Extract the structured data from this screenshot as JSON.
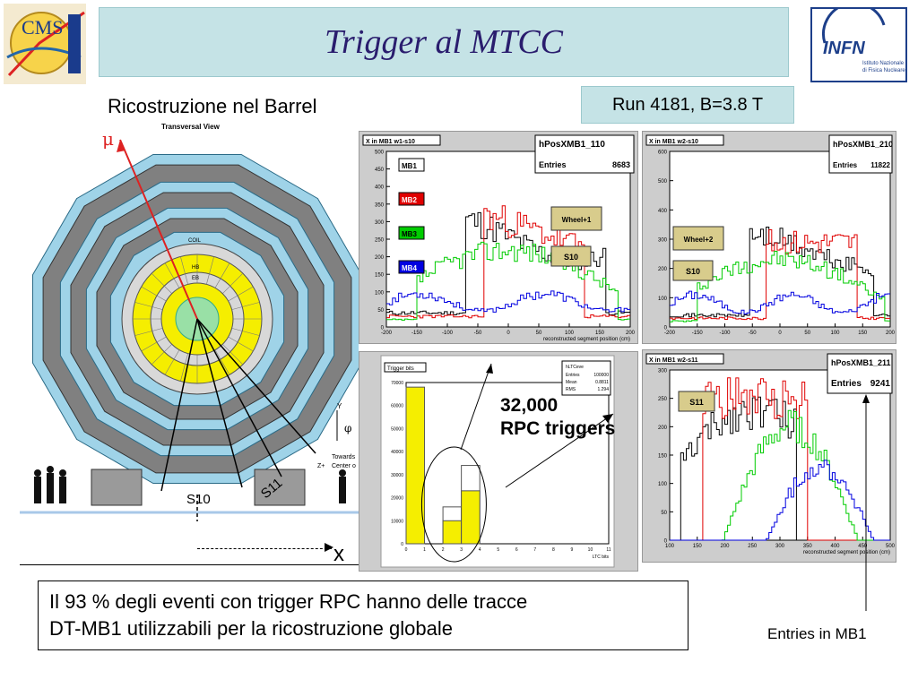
{
  "slide": {
    "title": "Trigger al MTCC",
    "subtitle": "Ricostruzione nel Barrel",
    "run_info": "Run 4181, B=3.8 T",
    "summary_line1": "Il 93 % degli eventi con trigger RPC hanno delle tracce",
    "summary_line2": "DT-MB1 utilizzabili per la ricostruzione globale",
    "entries_label": "Entries in MB1",
    "trigger_count": "32,000",
    "trigger_text": "RPC triggers"
  },
  "logos": {
    "cms_text": "CMS",
    "infn_text": "INFN",
    "infn_sub1": "Istituto Nazionale",
    "infn_sub2": "di Fisica Nucleare"
  },
  "detector": {
    "view_title": "Transversal View",
    "mu_label": "μ",
    "s10_label": "S10",
    "s11_label": "S11",
    "x_axis_label": "x",
    "y_label": "Y",
    "phi_label": "φ",
    "z_label": "Z+",
    "towards_label": "Towards",
    "center_label": "Center o",
    "coil_label": "COIL",
    "hb_label": "HB",
    "eb_label": "EB"
  },
  "hist1": {
    "frame_title": "X in MB1 w1-s10",
    "stat_name": "hPosXMB1_110",
    "entries_label": "Entries",
    "entries_value": "8683",
    "wheel": "Wheel+1",
    "sector": "S10",
    "legend": [
      "MB1",
      "MB2",
      "MB3",
      "MB4"
    ],
    "y_ticks": [
      "500",
      "450",
      "400",
      "350",
      "300",
      "250",
      "200",
      "150",
      "100",
      "50",
      "0"
    ],
    "x_ticks": [
      "-200",
      "-150",
      "-100",
      "-50",
      "0",
      "50",
      "100",
      "150",
      "200"
    ],
    "x_label": "reconstructed segment position (cm)"
  },
  "hist2": {
    "frame_title": "X in MB1 w2-s10",
    "stat_name": "hPosXMB1_210",
    "entries_label": "Entries",
    "entries_value": "11822",
    "wheel": "Wheel+2",
    "sector": "S10",
    "y_ticks": [
      "600",
      "500",
      "400",
      "300",
      "200",
      "100",
      "0"
    ],
    "x_ticks": [
      "-200",
      "-150",
      "-100",
      "-50",
      "0",
      "50",
      "100",
      "150",
      "200"
    ]
  },
  "hist3": {
    "frame_title": "Trigger bits",
    "stat_name": "hLTCeve",
    "stat_rows": [
      [
        "Entries",
        "100000"
      ],
      [
        "Mean",
        "0.8811"
      ],
      [
        "RMS",
        "1.294"
      ]
    ],
    "y_ticks": [
      "70000",
      "60000",
      "50000",
      "40000",
      "30000",
      "20000",
      "10000",
      "0"
    ],
    "x_ticks": [
      "0",
      "1",
      "2",
      "3",
      "4",
      "5",
      "6",
      "7",
      "8",
      "9",
      "10",
      "11"
    ],
    "x_label": "LTC bits"
  },
  "hist4": {
    "frame_title": "X in MB1 w2-s11",
    "stat_name": "hPosXMB1_211",
    "entries_label": "Entries",
    "entries_value": "9241",
    "sector": "S11",
    "y_ticks": [
      "300",
      "250",
      "200",
      "150",
      "100",
      "50",
      "0"
    ],
    "x_ticks": [
      "100",
      "150",
      "200",
      "250",
      "300",
      "350",
      "400",
      "450",
      "500"
    ],
    "x_label": "reconstructed segment position (cm)"
  },
  "colors": {
    "title_bg": "#c5e3e6",
    "title_text": "#2a1d6e",
    "mb1": "#000000",
    "mb2": "#e00000",
    "mb3": "#00cc00",
    "mb4": "#0000e0",
    "yellow": "#f5ee00",
    "khaki": "#d8cc8c"
  }
}
